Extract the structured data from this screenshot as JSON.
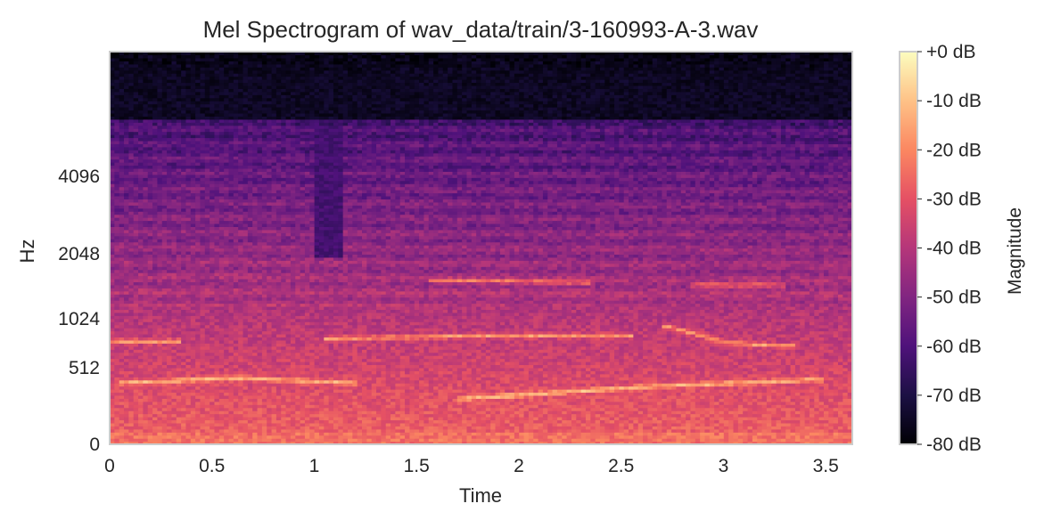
{
  "chart_data": {
    "type": "heatmap",
    "title": "Mel Spectrogram of wav_data/train/3-160993-A-3.wav",
    "xlabel": "Time",
    "ylabel": "Hz",
    "x_ticks": [
      "0",
      "0.5",
      "1",
      "1.5",
      "2",
      "2.5",
      "3",
      "3.5"
    ],
    "x_tick_values": [
      0,
      0.5,
      1,
      1.5,
      2,
      2.5,
      3,
      3.5
    ],
    "xlim": [
      0,
      3.63
    ],
    "y_scale": "mel",
    "y_ticks": [
      "0",
      "512",
      "1024",
      "2048",
      "4096"
    ],
    "y_tick_values": [
      0,
      512,
      1024,
      2048,
      4096
    ],
    "ylim": [
      0,
      11025
    ],
    "colormap": "magma",
    "colorbar": {
      "label": "Magnitude",
      "ticks": [
        "+0 dB",
        "-10 dB",
        "-20 dB",
        "-30 dB",
        "-40 dB",
        "-50 dB",
        "-60 dB",
        "-70 dB",
        "-80 dB"
      ],
      "tick_values": [
        0,
        -10,
        -20,
        -30,
        -40,
        -50,
        -60,
        -70,
        -80
      ],
      "range": [
        -80,
        0
      ]
    },
    "grid": false,
    "features": {
      "harmonic_bands": [
        {
          "t": [
            0.05,
            1.2
          ],
          "freq_hz": [
            390,
            430,
            390
          ]
        },
        {
          "t": [
            1.7,
            3.5
          ],
          "freq_hz": [
            270,
            360,
            420
          ]
        },
        {
          "t": [
            0,
            0.35
          ],
          "freq_hz": [
            770,
            770
          ]
        },
        {
          "t": [
            1.05,
            2.55
          ],
          "freq_hz": [
            800,
            830,
            830
          ]
        },
        {
          "t": [
            2.7,
            3.35
          ],
          "freq_hz": [
            950,
            750,
            720
          ]
        },
        {
          "t": [
            1.55,
            2.35
          ],
          "freq_hz": [
            1580,
            1540
          ]
        },
        {
          "t": [
            2.85,
            3.3
          ],
          "freq_hz": [
            1500,
            1500
          ]
        }
      ],
      "dark_regions": [
        {
          "t": [
            0,
            3.63
          ],
          "freq_hz_above": 6500,
          "level_db": -75
        },
        {
          "t": [
            1.0,
            1.15
          ],
          "freq_hz_above": 2000,
          "level_db": -62
        }
      ]
    }
  }
}
